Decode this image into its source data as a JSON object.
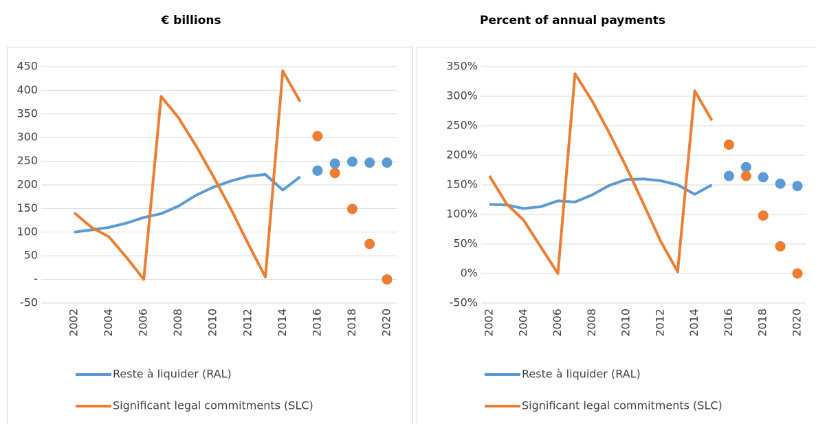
{
  "chart_data": [
    {
      "type": "line",
      "title": "€ billions",
      "x": [
        2002,
        2003,
        2004,
        2005,
        2006,
        2007,
        2008,
        2009,
        2010,
        2011,
        2012,
        2013,
        2014,
        2015,
        2016,
        2017,
        2018,
        2019,
        2020
      ],
      "xticks": [
        2002,
        2004,
        2006,
        2008,
        2010,
        2012,
        2014,
        2016,
        2018,
        2020
      ],
      "xlim": [
        2002,
        2020
      ],
      "ylim": [
        -50,
        450
      ],
      "yticks": [
        -50,
        {
          "value": 0,
          "label": "-"
        },
        50,
        100,
        150,
        200,
        250,
        300,
        350,
        400,
        450
      ],
      "grid": true,
      "series": [
        {
          "name": "Reste à liquider (RAL)",
          "color": "#5b9bd5",
          "values": [
            100,
            105,
            110,
            119,
            131,
            139,
            155,
            178,
            195,
            208,
            218,
            222,
            189,
            217,
            null,
            null,
            null,
            null,
            null
          ],
          "dot_values": [
            null,
            null,
            null,
            null,
            null,
            null,
            null,
            null,
            null,
            null,
            null,
            null,
            null,
            null,
            230,
            245,
            249,
            247,
            247
          ]
        },
        {
          "name": "Significant legal commitments (SLC)",
          "color": "#ed7d31",
          "values": [
            141,
            110,
            90,
            47,
            0,
            387,
            342,
            283,
            218,
            150,
            76,
            5,
            441,
            376,
            null,
            null,
            null,
            null,
            null
          ],
          "dot_values": [
            null,
            null,
            null,
            null,
            null,
            null,
            null,
            null,
            null,
            null,
            null,
            null,
            null,
            null,
            303,
            225,
            149,
            75,
            0
          ]
        }
      ]
    },
    {
      "type": "line",
      "title": "Percent of annual payments",
      "x": [
        2002,
        2003,
        2004,
        2005,
        2006,
        2007,
        2008,
        2009,
        2010,
        2011,
        2012,
        2013,
        2014,
        2015,
        2016,
        2017,
        2018,
        2019,
        2020
      ],
      "xticks": [
        2002,
        2004,
        2006,
        2008,
        2010,
        2012,
        2014,
        2016,
        2018,
        2020
      ],
      "xlim": [
        2002,
        2020
      ],
      "ylim": [
        -50,
        350
      ],
      "yticks": [
        {
          "value": -50,
          "label": "-50%"
        },
        {
          "value": 0,
          "label": "0%"
        },
        {
          "value": 50,
          "label": "50%"
        },
        {
          "value": 100,
          "label": "100%"
        },
        {
          "value": 150,
          "label": "150%"
        },
        {
          "value": 200,
          "label": "200%"
        },
        {
          "value": 250,
          "label": "250%"
        },
        {
          "value": 300,
          "label": "300%"
        },
        {
          "value": 350,
          "label": "350%"
        }
      ],
      "grid": true,
      "series": [
        {
          "name": "Reste à liquider (RAL)",
          "color": "#5b9bd5",
          "values": [
            117,
            116,
            110,
            113,
            123,
            121,
            133,
            149,
            159,
            160,
            157,
            150,
            134,
            150,
            null,
            null,
            null,
            null,
            null
          ],
          "dot_values": [
            null,
            null,
            null,
            null,
            null,
            null,
            null,
            null,
            null,
            null,
            null,
            null,
            null,
            null,
            165,
            180,
            163,
            152,
            148
          ]
        },
        {
          "name": "Significant legal commitments (SLC)",
          "color": "#ed7d31",
          "values": [
            165,
            118,
            90,
            45,
            0,
            338,
            292,
            238,
            180,
            118,
            55,
            3,
            309,
            259,
            null,
            null,
            null,
            null,
            null
          ],
          "dot_values": [
            null,
            null,
            null,
            null,
            null,
            null,
            null,
            null,
            null,
            null,
            null,
            null,
            null,
            null,
            218,
            165,
            98,
            46,
            0
          ]
        }
      ]
    }
  ]
}
